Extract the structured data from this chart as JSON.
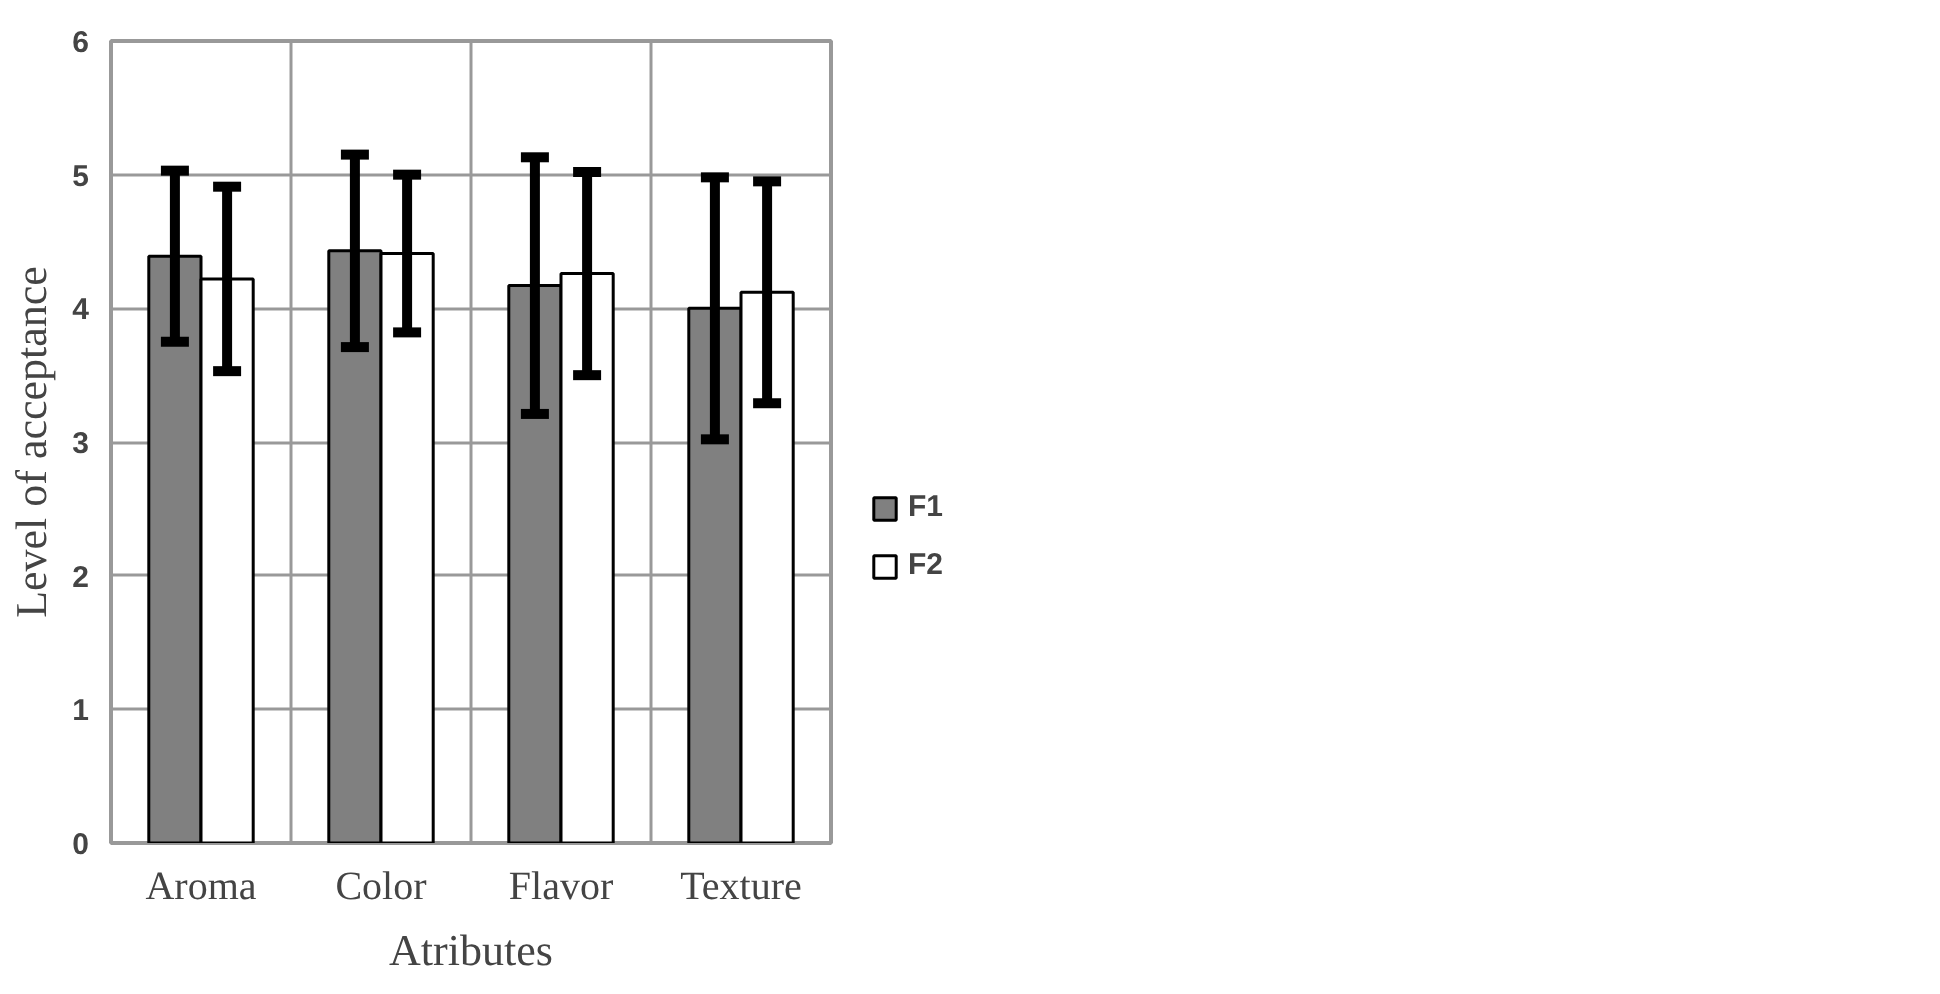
{
  "chart_data": {
    "type": "bar",
    "xlabel": "Atributes",
    "ylabel": "Level of acceptance",
    "categories": [
      "Aroma",
      "Color",
      "Flavor",
      "Texture"
    ],
    "series": [
      {
        "name": "F1",
        "color": "#808080",
        "values": [
          4.39,
          4.43,
          4.17,
          4.0
        ],
        "errors": [
          0.64,
          0.72,
          0.96,
          0.98
        ]
      },
      {
        "name": "F2",
        "color": "#ffffff",
        "values": [
          4.22,
          4.41,
          4.26,
          4.12
        ],
        "errors": [
          0.69,
          0.59,
          0.76,
          0.83
        ]
      }
    ],
    "ylim": [
      0,
      6
    ],
    "yticks": [
      0,
      1,
      2,
      3,
      4,
      5,
      6
    ],
    "grid": true,
    "legend": "right"
  }
}
